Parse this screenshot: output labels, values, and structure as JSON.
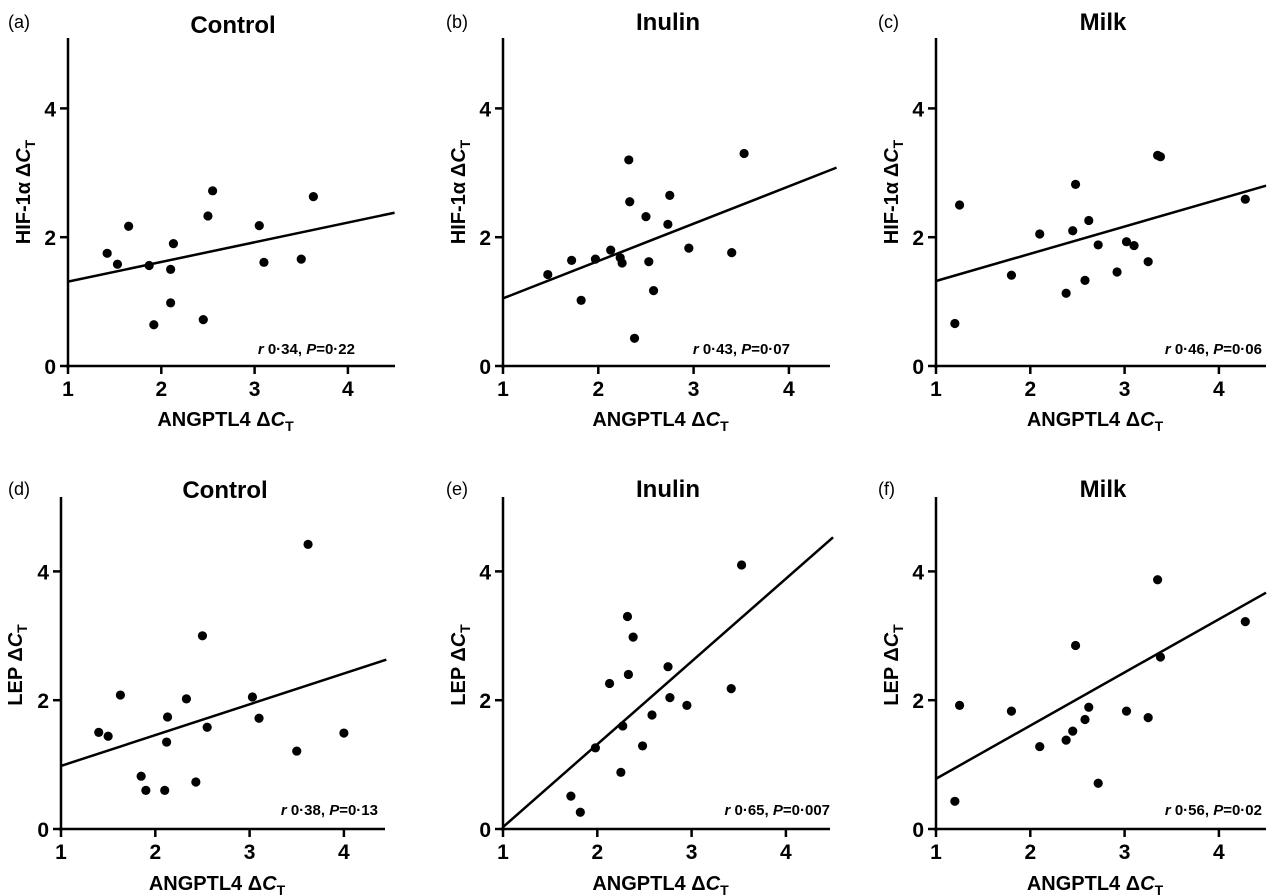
{
  "chart_data": [
    {
      "type": "scatter",
      "panel": "(a)",
      "title": "Control",
      "xlabel": "ANGPTL4 ΔCT",
      "ylabel": "HIF-1α ΔCT",
      "xlim": [
        1,
        4.5
      ],
      "ylim": [
        0,
        5
      ],
      "xticks": [
        "1",
        "2",
        "3",
        "4"
      ],
      "yticks": [
        "0",
        "2",
        "4"
      ],
      "stat_r": "0·34",
      "stat_p": "0·22",
      "points": [
        [
          1.42,
          1.75
        ],
        [
          1.53,
          1.58
        ],
        [
          1.65,
          2.17
        ],
        [
          1.87,
          1.56
        ],
        [
          1.92,
          0.64
        ],
        [
          2.1,
          1.5
        ],
        [
          2.1,
          0.98
        ],
        [
          2.13,
          1.9
        ],
        [
          2.45,
          0.72
        ],
        [
          2.5,
          2.33
        ],
        [
          2.55,
          2.72
        ],
        [
          3.05,
          2.18
        ],
        [
          3.1,
          1.61
        ],
        [
          3.5,
          1.66
        ],
        [
          3.63,
          2.63
        ]
      ],
      "fit": [
        [
          1,
          1.31
        ],
        [
          4.5,
          2.38
        ]
      ]
    },
    {
      "type": "scatter",
      "panel": "(b)",
      "title": "Inulin",
      "xlabel": "ANGPTL4 ΔCT",
      "ylabel": "HIF-1α ΔCT",
      "xlim": [
        1,
        4.5
      ],
      "ylim": [
        0,
        5
      ],
      "xticks": [
        "1",
        "2",
        "3",
        "4"
      ],
      "yticks": [
        "0",
        "2",
        "4"
      ],
      "stat_r": "0·43",
      "stat_p": "0·07",
      "points": [
        [
          1.47,
          1.42
        ],
        [
          1.72,
          1.64
        ],
        [
          1.82,
          1.02
        ],
        [
          1.97,
          1.66
        ],
        [
          2.13,
          1.8
        ],
        [
          2.23,
          1.68
        ],
        [
          2.25,
          1.6
        ],
        [
          2.32,
          3.2
        ],
        [
          2.33,
          2.55
        ],
        [
          2.38,
          0.43
        ],
        [
          2.5,
          2.32
        ],
        [
          2.53,
          1.62
        ],
        [
          2.58,
          1.17
        ],
        [
          2.73,
          2.2
        ],
        [
          2.75,
          2.65
        ],
        [
          2.95,
          1.83
        ],
        [
          3.4,
          1.76
        ],
        [
          3.53,
          3.3
        ]
      ],
      "fit": [
        [
          1,
          1.05
        ],
        [
          4.5,
          3.08
        ]
      ]
    },
    {
      "type": "scatter",
      "panel": "(c)",
      "title": "Milk",
      "xlabel": "ANGPTL4 ΔCT",
      "ylabel": "HIF-1α ΔCT",
      "xlim": [
        1,
        4.5
      ],
      "ylim": [
        0,
        5
      ],
      "xticks": [
        "1",
        "2",
        "3",
        "4"
      ],
      "yticks": [
        "0",
        "2",
        "4"
      ],
      "stat_r": "0·46",
      "stat_p": "0·06",
      "points": [
        [
          1.2,
          0.66
        ],
        [
          1.25,
          2.5
        ],
        [
          1.8,
          1.41
        ],
        [
          2.1,
          2.05
        ],
        [
          2.38,
          1.13
        ],
        [
          2.45,
          2.1
        ],
        [
          2.48,
          2.82
        ],
        [
          2.58,
          1.33
        ],
        [
          2.62,
          2.26
        ],
        [
          2.72,
          1.88
        ],
        [
          2.92,
          1.46
        ],
        [
          3.02,
          1.93
        ],
        [
          3.1,
          1.87
        ],
        [
          3.25,
          1.62
        ],
        [
          3.35,
          3.27
        ],
        [
          3.38,
          3.25
        ],
        [
          4.28,
          2.59
        ]
      ],
      "fit": [
        [
          1,
          1.32
        ],
        [
          4.5,
          2.8
        ]
      ]
    },
    {
      "type": "scatter",
      "panel": "(d)",
      "title": "Control",
      "xlabel": "ANGPTL4 ΔCT",
      "ylabel": "LEP ΔCT",
      "xlim": [
        1,
        4.5
      ],
      "ylim": [
        0,
        5
      ],
      "xticks": [
        "1",
        "2",
        "3",
        "4"
      ],
      "yticks": [
        "0",
        "2",
        "4"
      ],
      "stat_r": "0·38",
      "stat_p": "0·13",
      "points": [
        [
          1.4,
          1.5
        ],
        [
          1.5,
          1.44
        ],
        [
          1.63,
          2.08
        ],
        [
          1.85,
          0.82
        ],
        [
          1.9,
          0.6
        ],
        [
          2.1,
          0.6
        ],
        [
          2.12,
          1.35
        ],
        [
          2.13,
          1.74
        ],
        [
          2.33,
          2.02
        ],
        [
          2.43,
          0.73
        ],
        [
          2.5,
          3.0
        ],
        [
          2.55,
          1.58
        ],
        [
          3.03,
          2.05
        ],
        [
          3.1,
          1.72
        ],
        [
          3.5,
          1.21
        ],
        [
          3.62,
          4.42
        ],
        [
          4.0,
          1.49
        ]
      ],
      "fit": [
        [
          1,
          0.98
        ],
        [
          4.45,
          2.63
        ]
      ]
    },
    {
      "type": "scatter",
      "panel": "(e)",
      "title": "Inulin",
      "xlabel": "ANGPTL4 ΔCT",
      "ylabel": "LEP ΔCT",
      "xlim": [
        1,
        4.5
      ],
      "ylim": [
        0,
        5
      ],
      "xticks": [
        "1",
        "2",
        "3",
        "4"
      ],
      "yticks": [
        "0",
        "2",
        "4"
      ],
      "stat_r": "0·65",
      "stat_p": "0·007",
      "points": [
        [
          1.72,
          0.51
        ],
        [
          1.82,
          0.26
        ],
        [
          1.98,
          1.26
        ],
        [
          2.13,
          2.26
        ],
        [
          2.25,
          0.88
        ],
        [
          2.27,
          1.6
        ],
        [
          2.32,
          3.3
        ],
        [
          2.33,
          2.4
        ],
        [
          2.38,
          2.98
        ],
        [
          2.48,
          1.29
        ],
        [
          2.58,
          1.77
        ],
        [
          2.75,
          2.52
        ],
        [
          2.77,
          2.04
        ],
        [
          2.95,
          1.92
        ],
        [
          3.42,
          2.18
        ],
        [
          3.53,
          4.1
        ]
      ],
      "fit": [
        [
          1,
          0.03
        ],
        [
          4.5,
          4.53
        ]
      ]
    },
    {
      "type": "scatter",
      "panel": "(f)",
      "title": "Milk",
      "xlabel": "ANGPTL4 ΔCT",
      "ylabel": "LEP ΔCT",
      "xlim": [
        1,
        4.5
      ],
      "ylim": [
        0,
        5
      ],
      "xticks": [
        "1",
        "2",
        "3",
        "4"
      ],
      "yticks": [
        "0",
        "2",
        "4"
      ],
      "stat_r": "0·56",
      "stat_p": "0·02",
      "points": [
        [
          1.2,
          0.43
        ],
        [
          1.25,
          1.92
        ],
        [
          1.8,
          1.83
        ],
        [
          2.1,
          1.28
        ],
        [
          2.38,
          1.38
        ],
        [
          2.45,
          1.52
        ],
        [
          2.48,
          2.85
        ],
        [
          2.58,
          1.7
        ],
        [
          2.62,
          1.89
        ],
        [
          2.72,
          0.71
        ],
        [
          3.02,
          1.83
        ],
        [
          3.25,
          1.73
        ],
        [
          3.35,
          3.87
        ],
        [
          3.38,
          2.67
        ],
        [
          4.28,
          3.22
        ]
      ],
      "fit": [
        [
          1,
          0.78
        ],
        [
          4.5,
          3.67
        ]
      ]
    }
  ]
}
